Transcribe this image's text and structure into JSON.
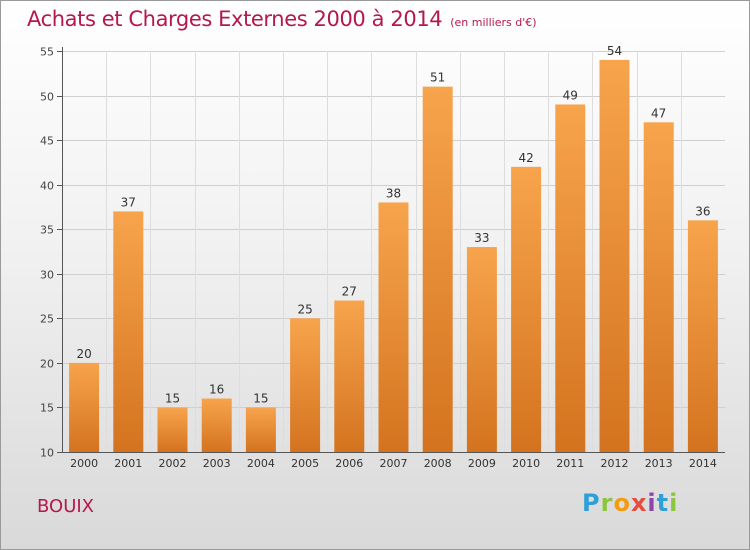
{
  "header": {
    "title": "Achats et Charges Externes 2000 à 2014",
    "subtitle": "(en milliers d'€)"
  },
  "footer": {
    "town": "BOUIX",
    "logo": "Proxiti"
  },
  "colors": {
    "bar_top": "#f7a44d",
    "bar_bottom": "#d4731f",
    "title": "#b5174f"
  },
  "chart_data": {
    "type": "bar",
    "categories": [
      "2000",
      "2001",
      "2002",
      "2003",
      "2004",
      "2005",
      "2006",
      "2007",
      "2008",
      "2009",
      "2010",
      "2011",
      "2012",
      "2013",
      "2014"
    ],
    "values": [
      20,
      37,
      15,
      16,
      15,
      25,
      27,
      38,
      51,
      33,
      42,
      49,
      54,
      47,
      36
    ],
    "title": "Achats et Charges Externes 2000 à 2014",
    "subtitle": "(en milliers d'€)",
    "xlabel": "",
    "ylabel": "",
    "ylim": [
      10,
      55
    ],
    "yticks": [
      10,
      15,
      20,
      25,
      30,
      35,
      40,
      45,
      50,
      55
    ],
    "grid": true,
    "data_labels": true
  }
}
